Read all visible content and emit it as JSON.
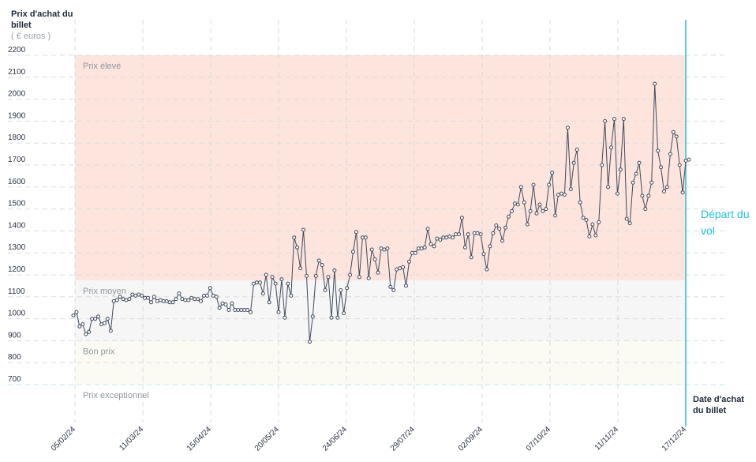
{
  "chart_data": {
    "type": "line",
    "ylabel": "Prix d'achat du billet",
    "ylabel_unit": "( € euros )",
    "xlabel": "Date d'achat du billet",
    "ylim": [
      700,
      2200
    ],
    "yticks": [
      700,
      800,
      900,
      1000,
      1100,
      1200,
      1300,
      1400,
      1500,
      1600,
      1700,
      1800,
      1900,
      2000,
      2100,
      2200
    ],
    "x_start": "05/02/24",
    "x_end": "17/12/24",
    "xticks": [
      "05/02/24",
      "11/03/24",
      "15/04/24",
      "20/05/24",
      "24/06/24",
      "29/07/24",
      "02/09/24",
      "07/10/24",
      "11/11/24",
      "17/12/24"
    ],
    "grid": true,
    "zones": [
      {
        "label": "Prix élevé",
        "from": 1175,
        "to": 2200,
        "color": "#fde4dd"
      },
      {
        "label": "Prix moyen",
        "from": 900,
        "to": 1175,
        "color": "#f6f6f6"
      },
      {
        "label": "Bon prix",
        "from": 700,
        "to": 900,
        "color": "#fbfbf3"
      },
      {
        "label": "Prix exceptionnel",
        "from": 700,
        "to": 700,
        "color": "#ffffff"
      }
    ],
    "annotation": "Départ du vol",
    "series": [
      {
        "values": [
          1015,
          1030,
          965,
          975,
          930,
          940,
          1000,
          1000,
          1010,
          975,
          980,
          1000,
          945,
          1080,
          1085,
          1100,
          1090,
          1085,
          1090,
          1110,
          1105,
          1110,
          1105,
          1095,
          1095,
          1075,
          1100,
          1080,
          1085,
          1080,
          1080,
          1075,
          1075,
          1090,
          1115,
          1090,
          1085,
          1085,
          1095,
          1090,
          1090,
          1080,
          1105,
          1105,
          1140,
          1105,
          1100,
          1050,
          1070,
          1065,
          1040,
          1070,
          1040,
          1040,
          1040,
          1040,
          1040,
          1030,
          1160,
          1165,
          1165,
          1115,
          1200,
          1075,
          1190,
          1160,
          1030,
          1180,
          1005,
          1160,
          1105,
          1370,
          1325,
          1230,
          1405,
          1195,
          895,
          1010,
          1195,
          1265,
          1245,
          1130,
          1190,
          1005,
          1220,
          1005,
          1130,
          1025,
          1140,
          1200,
          1305,
          1395,
          1190,
          1370,
          1370,
          1185,
          1315,
          1270,
          1210,
          1320,
          1315,
          1320,
          1145,
          1130,
          1225,
          1230,
          1235,
          1150,
          1260,
          1300,
          1300,
          1320,
          1320,
          1325,
          1410,
          1340,
          1330,
          1365,
          1360,
          1370,
          1370,
          1375,
          1370,
          1385,
          1385,
          1460,
          1325,
          1385,
          1280,
          1390,
          1390,
          1385,
          1295,
          1225,
          1330,
          1390,
          1425,
          1410,
          1355,
          1415,
          1465,
          1490,
          1525,
          1520,
          1600,
          1530,
          1430,
          1490,
          1610,
          1480,
          1520,
          1490,
          1500,
          1610,
          1665,
          1470,
          1565,
          1570,
          1565,
          1870,
          1590,
          1710,
          1770,
          1530,
          1460,
          1450,
          1375,
          1430,
          1380,
          1440,
          1700,
          1900,
          1600,
          1780,
          1910,
          1570,
          1680,
          1910,
          1455,
          1435,
          1620,
          1660,
          1710,
          1560,
          1500,
          1560,
          1620,
          2070,
          1765,
          1690,
          1580,
          1600,
          1750,
          1850,
          1830,
          1700,
          1575,
          1720,
          1725
        ]
      }
    ]
  }
}
